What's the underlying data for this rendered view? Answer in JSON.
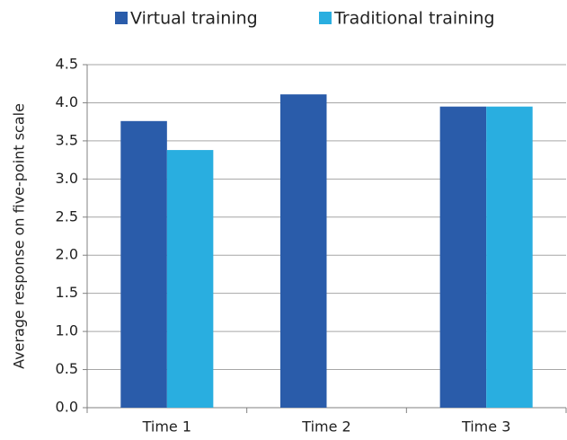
{
  "chart_data": {
    "type": "bar",
    "y_label": "Average response on five-point scale",
    "categories": [
      "Time 1",
      "Time 2",
      "Time 3"
    ],
    "series": [
      {
        "name": "Virtual training",
        "color": "#2a5caa",
        "values": [
          3.76,
          4.11,
          3.95
        ]
      },
      {
        "name": "Traditional training",
        "color": "#29aee0",
        "values": [
          3.38,
          null,
          3.95
        ]
      }
    ],
    "ylim": [
      0,
      4.5
    ],
    "yticks": [
      {
        "value": 0,
        "label": "0.0"
      },
      0.5,
      {
        "value": 1,
        "label": "1.0"
      },
      1.5,
      {
        "value": 2,
        "label": "2.0"
      },
      2.5,
      {
        "value": 3,
        "label": "3.0"
      },
      3.5,
      {
        "value": 4,
        "label": "4.0"
      },
      4.5
    ],
    "grid": true,
    "legend": "top"
  }
}
